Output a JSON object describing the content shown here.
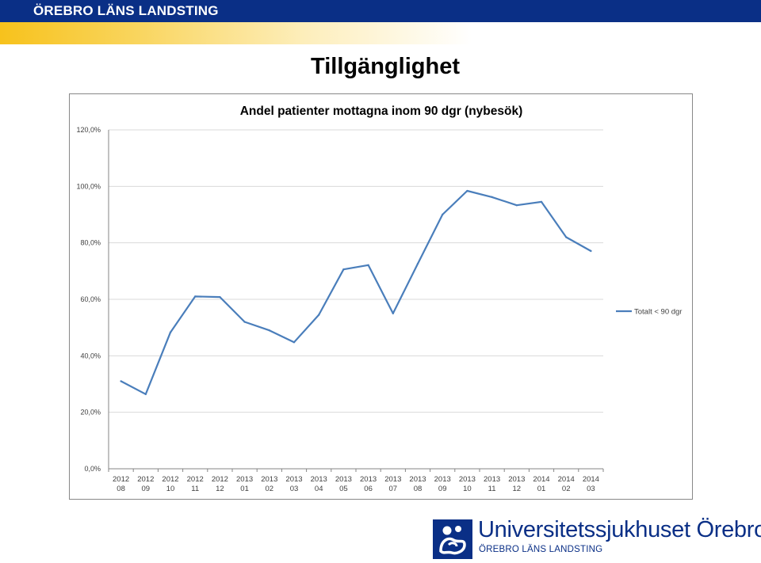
{
  "header": {
    "brand": "ÖREBRO LÄNS LANDSTING"
  },
  "slide": {
    "title": "Tillgänglighet"
  },
  "colors": {
    "header_blue": "#0a2f86",
    "accent_yellow": "#f7c21c",
    "series_blue": "#4a7ebb"
  },
  "chart_data": {
    "type": "line",
    "title": "Andel patienter mottagna inom 90 dgr (nybesök)",
    "xlabel": "",
    "ylabel": "",
    "categories": [
      [
        "2012",
        "08"
      ],
      [
        "2012",
        "09"
      ],
      [
        "2012",
        "10"
      ],
      [
        "2012",
        "11"
      ],
      [
        "2012",
        "12"
      ],
      [
        "2013",
        "01"
      ],
      [
        "2013",
        "02"
      ],
      [
        "2013",
        "03"
      ],
      [
        "2013",
        "04"
      ],
      [
        "2013",
        "05"
      ],
      [
        "2013",
        "06"
      ],
      [
        "2013",
        "07"
      ],
      [
        "2013",
        "08"
      ],
      [
        "2013",
        "09"
      ],
      [
        "2013",
        "10"
      ],
      [
        "2013",
        "11"
      ],
      [
        "2013",
        "12"
      ],
      [
        "2014",
        "01"
      ],
      [
        "2014",
        "02"
      ],
      [
        "2014",
        "03"
      ]
    ],
    "series": [
      {
        "name": "Totalt < 90 dgr",
        "color": "#4a7ebb",
        "values": [
          31.0,
          26.4,
          48.3,
          61.0,
          60.8,
          52.0,
          49.0,
          44.8,
          54.5,
          70.6,
          72.1,
          55.0,
          72.6,
          90.0,
          98.4,
          96.2,
          93.3,
          94.5,
          82.0,
          77.1
        ]
      }
    ],
    "ylim": [
      0,
      120
    ],
    "yticks": [
      "0,0%",
      "20,0%",
      "40,0%",
      "60,0%",
      "80,0%",
      "100,0%",
      "120,0%"
    ],
    "ytick_values": [
      0,
      20,
      40,
      60,
      80,
      100,
      120
    ],
    "grid": true,
    "legend": "right"
  },
  "logo": {
    "name": "Universitetssjukhuset Örebro",
    "sub": "ÖREBRO LÄNS LANDSTING",
    "icon": "hospital-logo-icon"
  }
}
